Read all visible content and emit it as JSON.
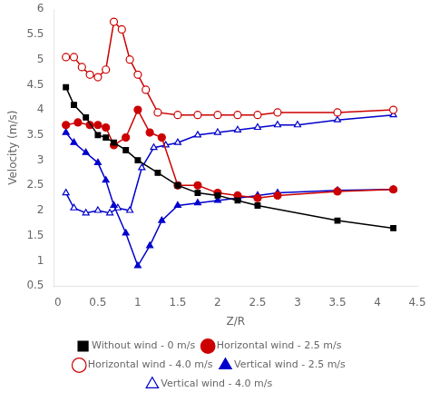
{
  "chart_data": {
    "type": "line",
    "xlabel": "Z/R",
    "ylabel": "Velocity (m/s)",
    "xlim": [
      -0.05,
      4.5
    ],
    "ylim": [
      0.5,
      6.0
    ],
    "xticks": [
      0.0,
      0.5,
      1.0,
      1.5,
      2.0,
      2.5,
      3.0,
      3.5,
      4.0,
      4.5
    ],
    "yticks": [
      0.5,
      1.0,
      1.5,
      2.0,
      2.5,
      3.0,
      3.5,
      4.0,
      4.5,
      5.0,
      5.5,
      6.0
    ],
    "grid": false,
    "legend": "bottom",
    "series": [
      {
        "name": "Without wind - 0 m/s",
        "color": "#000000",
        "marker": "square",
        "x": [
          0.1,
          0.2,
          0.35,
          0.5,
          0.6,
          0.7,
          0.85,
          1.0,
          1.25,
          1.5,
          1.75,
          2.0,
          2.25,
          2.5,
          3.5,
          4.2
        ],
        "values": [
          4.45,
          4.1,
          3.85,
          3.5,
          3.45,
          3.35,
          3.2,
          3.0,
          2.75,
          2.5,
          2.35,
          2.3,
          2.2,
          2.1,
          1.8,
          1.65
        ]
      },
      {
        "name": "Horizontal wind - 2.5 m/s",
        "color": "#cc0000",
        "marker": "circle",
        "x": [
          0.1,
          0.25,
          0.4,
          0.5,
          0.6,
          0.7,
          0.85,
          1.0,
          1.15,
          1.3,
          1.5,
          1.75,
          2.0,
          2.25,
          2.5,
          2.75,
          3.5,
          4.2
        ],
        "values": [
          3.7,
          3.75,
          3.7,
          3.7,
          3.65,
          3.3,
          3.45,
          4.0,
          3.55,
          3.45,
          2.5,
          2.5,
          2.35,
          2.3,
          2.25,
          2.3,
          2.38,
          2.42
        ]
      },
      {
        "name": "Horizontal wind - 4.0 m/s",
        "color": "#cc0000",
        "marker": "open-circle",
        "x": [
          0.1,
          0.2,
          0.3,
          0.4,
          0.5,
          0.6,
          0.7,
          0.8,
          0.9,
          1.0,
          1.1,
          1.25,
          1.5,
          1.75,
          2.0,
          2.25,
          2.5,
          2.75,
          3.5,
          4.2
        ],
        "values": [
          5.05,
          5.05,
          4.85,
          4.7,
          4.65,
          4.8,
          5.75,
          5.6,
          5.0,
          4.7,
          4.4,
          3.95,
          3.9,
          3.9,
          3.9,
          3.9,
          3.9,
          3.95,
          3.95,
          4.0
        ]
      },
      {
        "name": "Vertical wind - 2.5 m/s",
        "color": "#0000cc",
        "marker": "triangle",
        "x": [
          0.1,
          0.2,
          0.35,
          0.5,
          0.6,
          0.7,
          0.85,
          1.0,
          1.15,
          1.3,
          1.5,
          1.75,
          2.0,
          2.25,
          2.5,
          2.75,
          3.5,
          4.2
        ],
        "values": [
          3.55,
          3.35,
          3.15,
          2.95,
          2.6,
          2.1,
          1.55,
          0.9,
          1.3,
          1.8,
          2.1,
          2.15,
          2.2,
          2.25,
          2.3,
          2.35,
          2.4,
          2.42
        ]
      },
      {
        "name": "Vertical wind - 4.0 m/s",
        "color": "#0000cc",
        "marker": "open-triangle",
        "x": [
          0.1,
          0.2,
          0.35,
          0.5,
          0.65,
          0.75,
          0.9,
          1.05,
          1.2,
          1.35,
          1.5,
          1.75,
          2.0,
          2.25,
          2.5,
          2.75,
          3.0,
          3.5,
          4.2
        ],
        "values": [
          2.35,
          2.05,
          1.95,
          2.0,
          1.95,
          2.05,
          2.0,
          2.85,
          3.25,
          3.3,
          3.35,
          3.5,
          3.55,
          3.6,
          3.65,
          3.7,
          3.7,
          3.8,
          3.9
        ]
      }
    ]
  }
}
